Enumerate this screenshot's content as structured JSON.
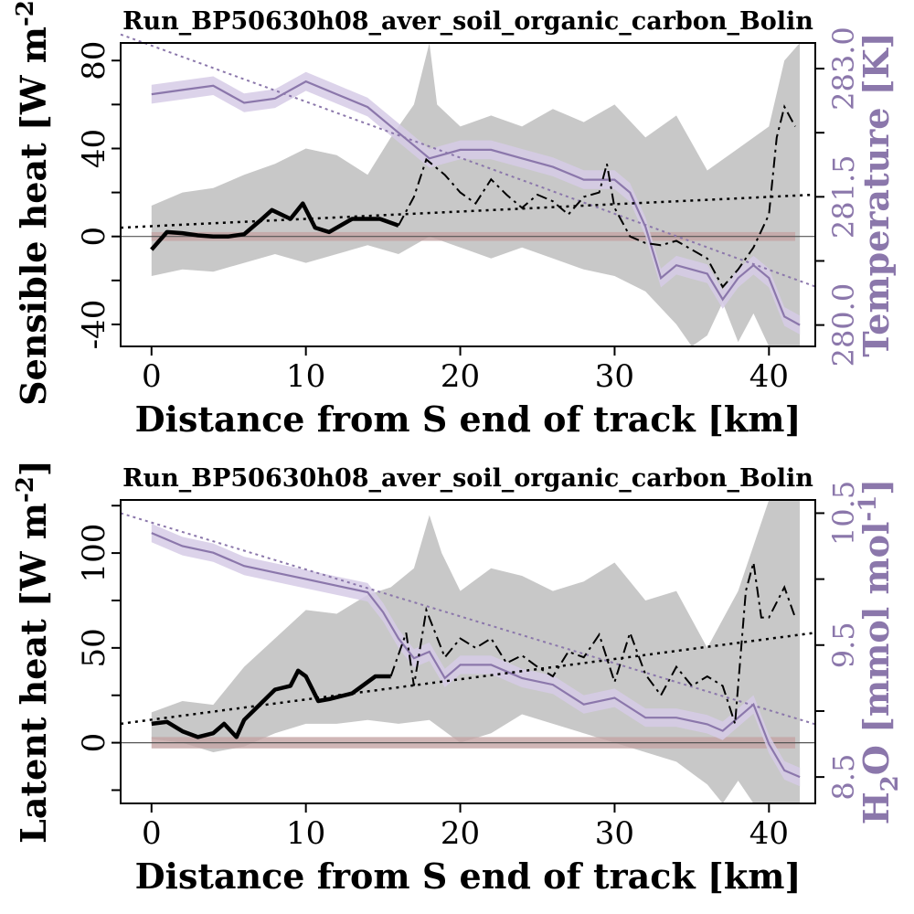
{
  "colors": {
    "temperature": "#8b77ab",
    "band_purple": "#d6cbe6",
    "band_gray": "#c8c8c8",
    "band_red": "#c4a4a4",
    "flux": "#000000"
  },
  "chart_data": [
    {
      "type": "line",
      "title": "Run_BP50630h08_aver_soil_organic_carbon_Bolin",
      "xlabel": "Distance from S end of track [km]",
      "ylabel_base": "Sensible heat [W m",
      "ylabel_sup": "-2",
      "ylabel_end": "]",
      "y2label": "Temperature [K]",
      "xlim": [
        -2,
        43
      ],
      "ylim": [
        -50,
        88
      ],
      "y2lim": [
        279.75,
        283.3
      ],
      "xticks": [
        "0",
        "10",
        "20",
        "30",
        "40"
      ],
      "yticks": [
        "-40",
        "0",
        "40",
        "80"
      ],
      "y2ticks": [
        "280.0",
        "281.5",
        "283.0"
      ],
      "series": [
        {
          "role": "flux",
          "x": [
            0,
            1,
            2,
            3,
            4,
            5,
            6,
            7,
            7.8,
            9,
            9.8,
            10.6,
            11.5,
            13,
            14.8,
            16,
            17,
            17.8,
            19,
            20,
            21,
            22,
            23,
            24,
            25,
            26,
            27,
            28,
            29,
            29.5,
            30,
            31,
            32,
            33,
            34,
            35,
            36,
            37,
            38,
            39,
            40,
            40.5,
            41,
            41.7
          ],
          "y": [
            -6,
            2,
            1.5,
            0.5,
            0,
            0,
            1,
            7,
            12,
            8,
            15,
            4,
            2,
            8,
            8,
            5,
            18,
            35,
            28,
            20,
            15,
            26,
            19,
            13,
            19,
            16,
            10,
            18,
            20,
            33,
            13,
            0,
            -3,
            -4,
            -2,
            -6,
            -10,
            -23,
            -15,
            -5,
            10,
            45,
            59,
            50
          ]
        },
        {
          "role": "flux_band_upper",
          "x": [
            0,
            2,
            4,
            6,
            8,
            10,
            12,
            14,
            15.5,
            17,
            18,
            18.5,
            20,
            22,
            24,
            26,
            28,
            30,
            32,
            34,
            36,
            38,
            40,
            41,
            42
          ],
          "y": [
            14,
            20,
            22,
            28,
            33,
            40,
            37,
            28,
            45,
            60,
            88,
            60,
            50,
            55,
            50,
            58,
            52,
            60,
            45,
            55,
            30,
            40,
            50,
            80,
            88
          ]
        },
        {
          "role": "flux_band_lower",
          "x": [
            0,
            2,
            4,
            6,
            8,
            10,
            12,
            14,
            16,
            18,
            20,
            22,
            24,
            26,
            28,
            30,
            32,
            34,
            35,
            36,
            37,
            38,
            39,
            40,
            41,
            42
          ],
          "y": [
            -18,
            -15,
            -16,
            -12,
            -8,
            -12,
            -8,
            -4,
            -8,
            0,
            -5,
            -10,
            -5,
            -10,
            -15,
            -18,
            -25,
            -40,
            -50,
            -45,
            -30,
            -48,
            -35,
            -50,
            -50,
            -50
          ]
        },
        {
          "role": "temperature",
          "x": [
            0,
            2,
            4,
            6,
            8,
            10,
            12,
            14,
            16,
            17,
            18,
            20,
            22,
            24,
            26,
            28,
            30,
            31,
            32,
            33,
            34,
            35,
            36,
            37,
            38,
            39,
            40,
            41,
            42
          ],
          "y": [
            282.7,
            282.75,
            282.8,
            282.6,
            282.65,
            282.85,
            282.7,
            282.55,
            282.25,
            282.1,
            281.95,
            282.05,
            282.05,
            281.95,
            281.85,
            281.7,
            281.7,
            281.55,
            281.15,
            280.55,
            280.7,
            280.65,
            280.6,
            280.3,
            280.55,
            280.7,
            280.55,
            280.1,
            280.0
          ]
        },
        {
          "role": "temp_band_half",
          "value": 0.11
        },
        {
          "role": "temperature_trend",
          "x": [
            -2,
            43
          ],
          "y": [
            283.4,
            280.45
          ]
        },
        {
          "role": "flux_trend",
          "x": [
            -2,
            43
          ],
          "y": [
            4,
            19
          ]
        },
        {
          "role": "zero_band",
          "value": 2
        }
      ]
    },
    {
      "type": "line",
      "title": "Run_BP50630h08_aver_soil_organic_carbon_Bolin",
      "xlabel": "Distance from S end of track [km]",
      "ylabel_base": "Latent heat [W m",
      "ylabel_sup": "-2",
      "ylabel_end": "]",
      "y2label_a": "H",
      "y2label_sub": "2",
      "y2label_b": "O [mmol mol",
      "y2label_sup": "-1",
      "y2label_c": "]",
      "xlim": [
        -2,
        43
      ],
      "ylim": [
        -32,
        128
      ],
      "y2lim": [
        8.3,
        10.6
      ],
      "xticks": [
        "0",
        "10",
        "20",
        "30",
        "40"
      ],
      "yticks": [
        "0",
        "50",
        "100"
      ],
      "y2ticks": [
        "8.5",
        "9.5",
        "10.5"
      ],
      "series": [
        {
          "role": "flux",
          "x": [
            0,
            1,
            2,
            3,
            4,
            4.7,
            5.5,
            6,
            7,
            8,
            9,
            9.5,
            10,
            10.8,
            11.5,
            13,
            14.5,
            15.5,
            16.5,
            17,
            17.8,
            19,
            20,
            21,
            22,
            23,
            24,
            25,
            26,
            27,
            28,
            29,
            30,
            31,
            32,
            33,
            34,
            35,
            36,
            37,
            37.8,
            38.5,
            39,
            39.5,
            40,
            41,
            41.7
          ],
          "y": [
            10,
            11,
            6,
            3,
            5,
            10,
            3,
            12,
            20,
            28,
            30,
            38,
            35,
            22,
            23,
            26,
            35,
            35,
            58,
            30,
            70,
            45,
            55,
            50,
            55,
            42,
            46,
            40,
            35,
            48,
            45,
            57,
            32,
            58,
            36,
            25,
            40,
            30,
            35,
            30,
            10,
            80,
            95,
            66,
            66,
            82,
            66
          ]
        },
        {
          "role": "flux_band_upper",
          "x": [
            0,
            2,
            4,
            6,
            8,
            10,
            12,
            14,
            15.5,
            17,
            18,
            18.8,
            20,
            22,
            24,
            26,
            28,
            30,
            32,
            34,
            36,
            38,
            40,
            41,
            42
          ],
          "y": [
            16,
            22,
            20,
            40,
            55,
            70,
            68,
            78,
            82,
            92,
            120,
            100,
            80,
            92,
            88,
            80,
            85,
            95,
            75,
            80,
            50,
            80,
            128,
            128,
            128
          ]
        },
        {
          "role": "flux_band_lower",
          "x": [
            0,
            2,
            4,
            6,
            8,
            10,
            12,
            14,
            16,
            18,
            20,
            22,
            24,
            26,
            28,
            30,
            32,
            34,
            36,
            37,
            38,
            39,
            40,
            41,
            42
          ],
          "y": [
            2,
            0,
            -5,
            -2,
            5,
            10,
            10,
            12,
            10,
            12,
            0,
            5,
            15,
            10,
            5,
            0,
            -5,
            -10,
            -22,
            -32,
            -20,
            -32,
            -32,
            -32,
            -32
          ]
        },
        {
          "role": "h2o",
          "x": [
            0,
            2,
            4,
            6,
            8,
            10,
            12,
            14,
            15,
            16,
            17,
            18,
            19,
            20,
            22,
            24,
            26,
            28,
            30,
            32,
            34,
            36,
            37,
            38,
            39,
            40,
            41,
            42
          ],
          "y": [
            10.35,
            10.25,
            10.2,
            10.1,
            10.05,
            10.0,
            9.95,
            9.9,
            9.75,
            9.55,
            9.4,
            9.45,
            9.25,
            9.35,
            9.35,
            9.25,
            9.2,
            9.05,
            9.1,
            8.95,
            8.95,
            8.9,
            8.85,
            8.95,
            9.05,
            8.75,
            8.55,
            8.5
          ]
        },
        {
          "role": "h2o_band_half",
          "value": 0.07
        },
        {
          "role": "h2o_trend",
          "x": [
            -2,
            43
          ],
          "y": [
            10.5,
            8.9
          ]
        },
        {
          "role": "flux_trend",
          "x": [
            -2,
            43
          ],
          "y": [
            10,
            58
          ]
        },
        {
          "role": "zero_band",
          "value": 3
        }
      ]
    }
  ]
}
